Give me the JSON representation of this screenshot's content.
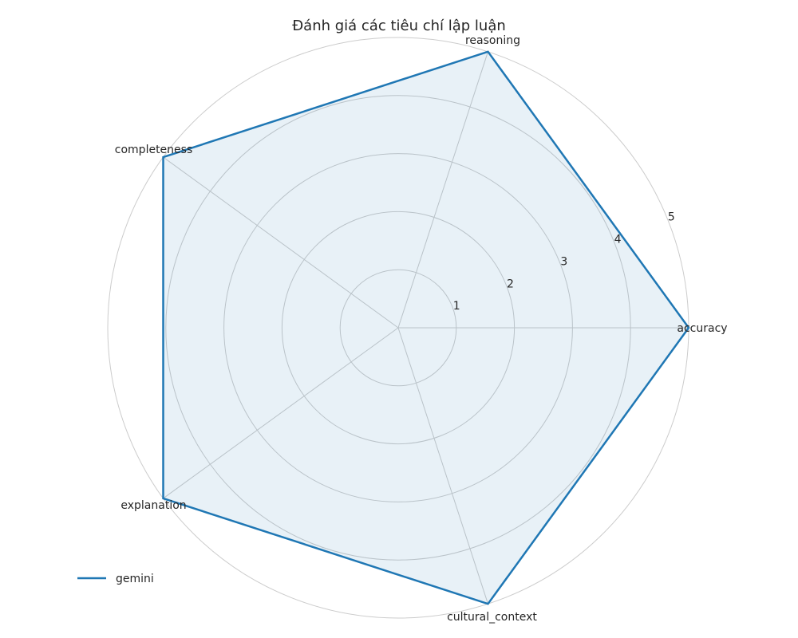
{
  "chart_data": {
    "type": "radar",
    "title": "Đánh giá các tiêu chí lập luận",
    "axes": [
      "accuracy",
      "reasoning",
      "completeness",
      "explanation",
      "cultural_context"
    ],
    "rlim": [
      0,
      5
    ],
    "rticks": [
      1,
      2,
      3,
      4,
      5
    ],
    "grid": true,
    "legend_position": "lower-left",
    "series": [
      {
        "name": "gemini",
        "values": [
          5,
          5,
          5,
          5,
          5
        ],
        "color": "#1f77b4",
        "fill_color": "#1f77b4",
        "fill_opacity": 0.1
      }
    ]
  }
}
